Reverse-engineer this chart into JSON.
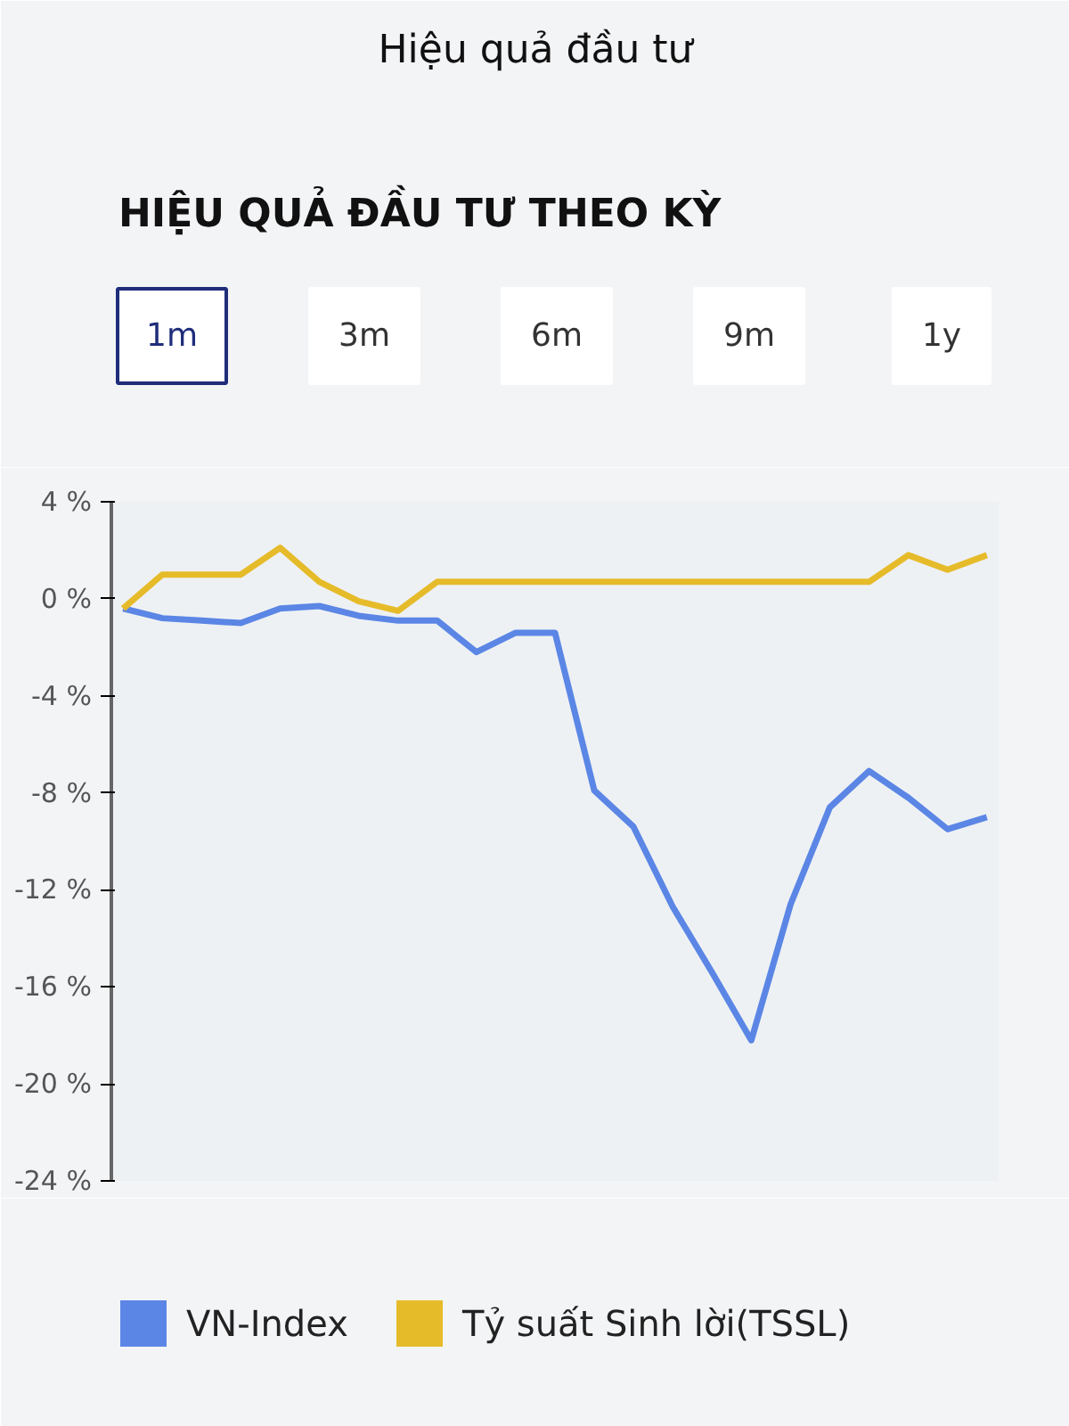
{
  "chart_data": {
    "type": "line",
    "title": "Hiệu quả đầu tư",
    "subtitle": "HIỆU QUẢ ĐẦU TƯ THEO KỲ",
    "annotations": [
      "1m",
      "3m",
      "6m",
      "9m",
      "1y"
    ],
    "categories": [
      null,
      null,
      null,
      null,
      null,
      null,
      null,
      null,
      null,
      null,
      null,
      null,
      null,
      null,
      null,
      null,
      null,
      null,
      null,
      null,
      null,
      null,
      null
    ],
    "series": [
      {
        "name": "VN-Index",
        "color": "#5b86e5",
        "values": [
          -0.4,
          -0.8,
          -0.9,
          -1.0,
          -0.4,
          -0.3,
          -0.7,
          -0.9,
          -0.9,
          -2.2,
          -1.4,
          -1.4,
          -7.9,
          -9.4,
          -12.7,
          -15.4,
          -18.2,
          -12.6,
          -8.6,
          -7.1,
          -8.2,
          -9.5,
          -9.0
        ]
      },
      {
        "name": "Tỷ suất Sinh lời(TSSL)",
        "color": "#e6bb2a",
        "values": [
          -0.4,
          1.0,
          1.0,
          1.0,
          2.1,
          0.7,
          -0.1,
          -0.5,
          0.7,
          0.7,
          0.7,
          0.7,
          0.7,
          0.7,
          0.7,
          0.7,
          0.7,
          0.7,
          0.7,
          0.7,
          1.8,
          1.2,
          1.8
        ]
      }
    ],
    "ylim": [
      -24,
      4
    ],
    "yticks": [
      {
        "value": 4,
        "label": "4 %"
      },
      {
        "value": 0,
        "label": "0 %"
      },
      {
        "value": -4,
        "label": "-4 %"
      },
      {
        "value": -8,
        "label": "-8 %"
      },
      {
        "value": -12,
        "label": "-12 %"
      },
      {
        "value": -16,
        "label": "-16 %"
      },
      {
        "value": -20,
        "label": "-20 %"
      },
      {
        "value": -24,
        "label": "-24 %"
      }
    ],
    "tick_labels": "y",
    "grid": false,
    "legend": "bottom",
    "marker": "none",
    "line_style": "solid"
  }
}
